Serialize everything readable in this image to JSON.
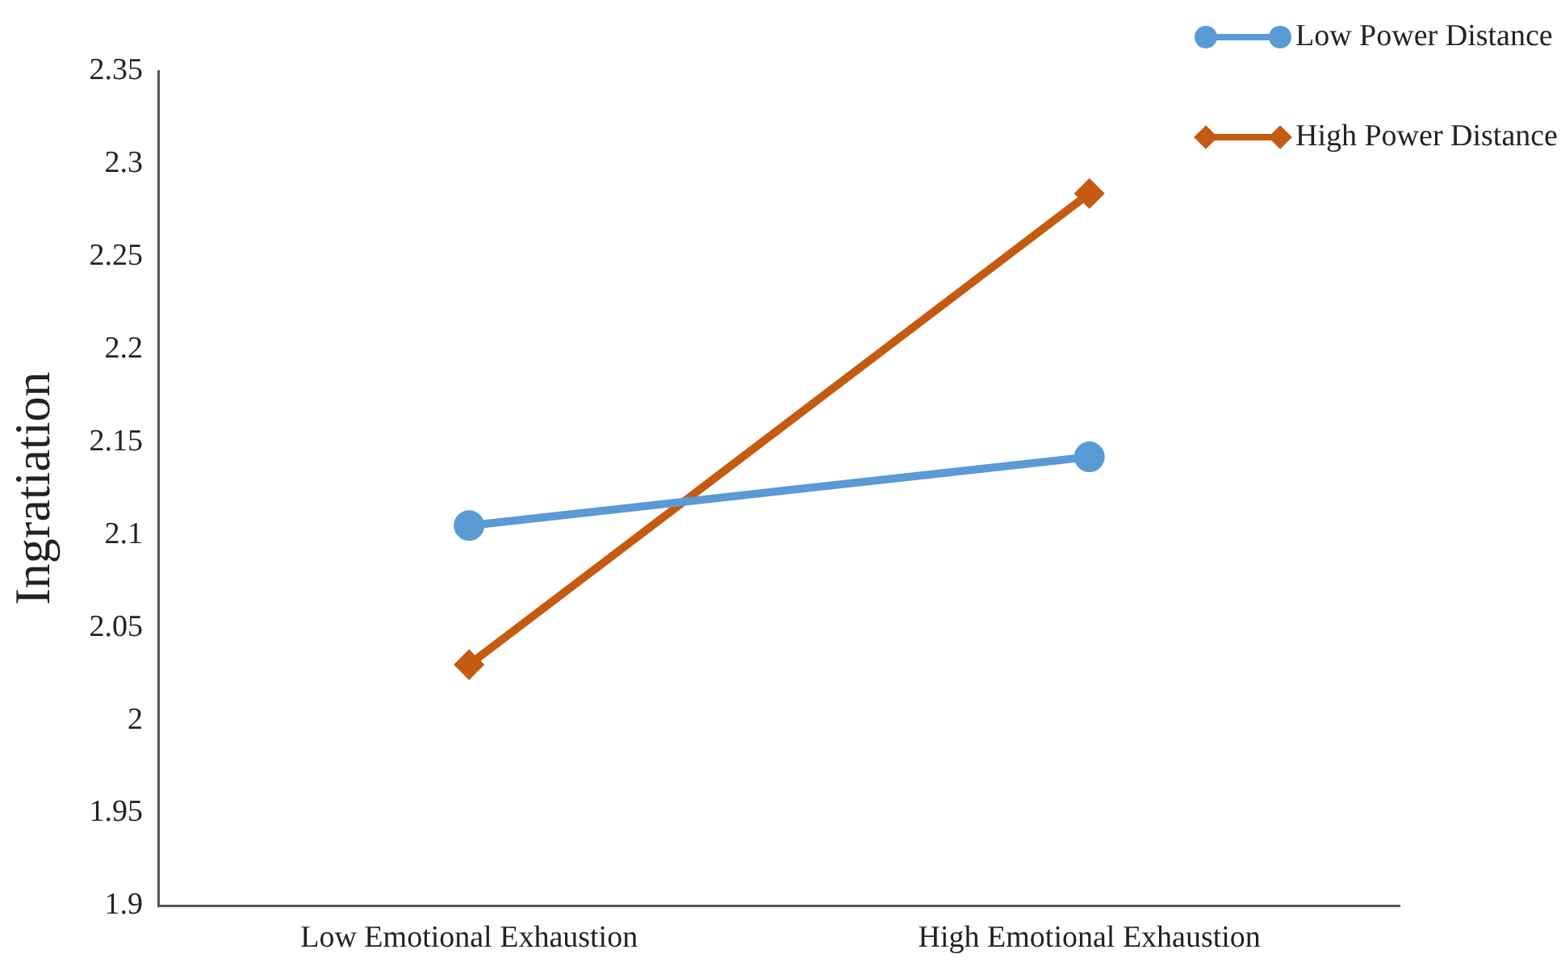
{
  "chart_data": {
    "type": "line",
    "ylabel": "Ingratiation",
    "categories": [
      "Low Emotional Exhaustion",
      "High Emotional Exhaustion"
    ],
    "series": [
      {
        "name": "Low Power Distance",
        "color": "#5b9bd5",
        "values": [
          2.105,
          2.142
        ],
        "marker": "circle"
      },
      {
        "name": "High Power Distance",
        "color": "#c55a11",
        "values": [
          2.03,
          2.284
        ],
        "marker": "diamond"
      }
    ],
    "ylim": [
      1.9,
      2.35
    ],
    "yticks": [
      1.9,
      1.95,
      2,
      2.05,
      2.1,
      2.15,
      2.2,
      2.25,
      2.3,
      2.35
    ],
    "grid": false,
    "legend": "top right",
    "line_style": "solid"
  }
}
